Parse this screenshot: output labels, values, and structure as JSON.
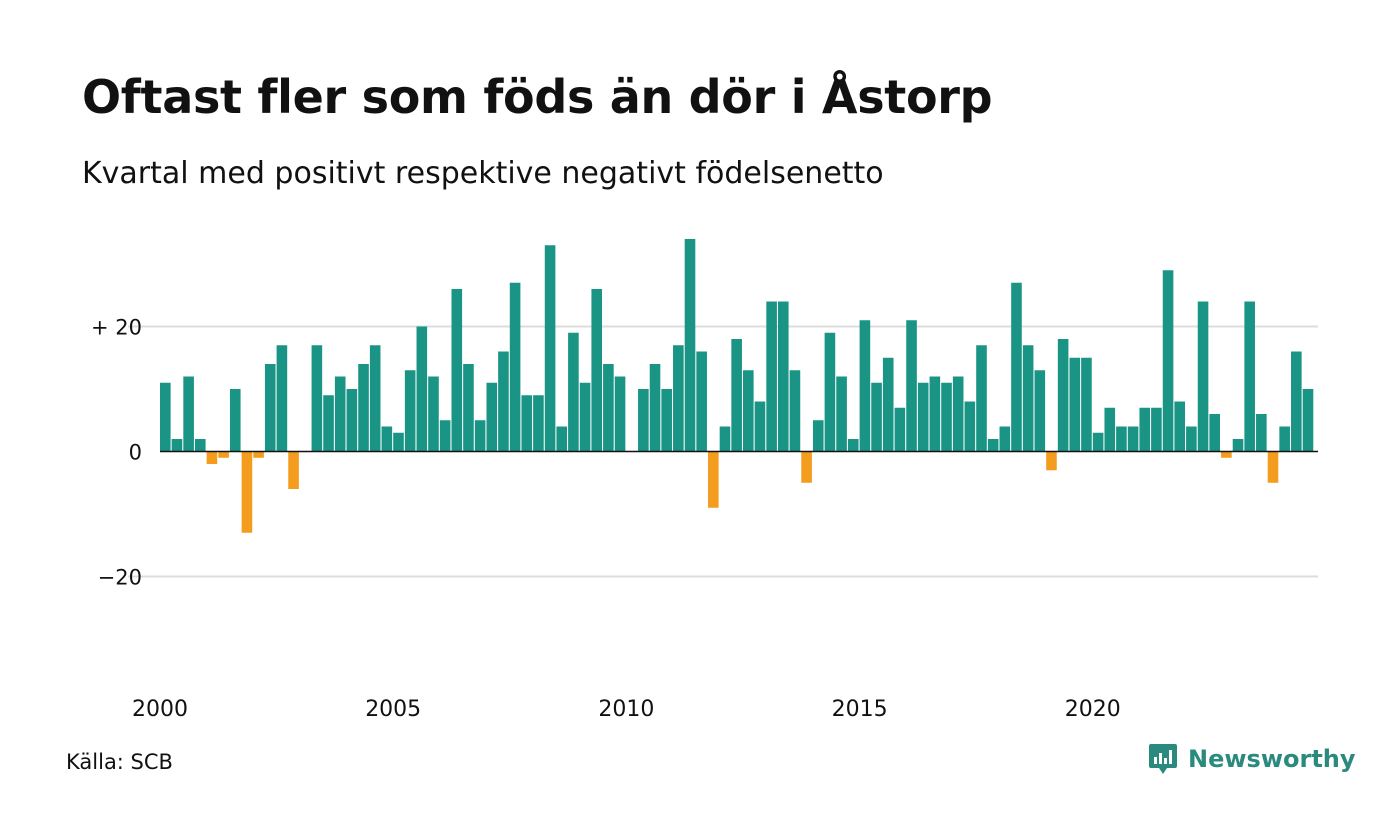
{
  "title": "Oftast fler som föds än dör i Åstorp",
  "subtitle": "Kvartal med positivt respektive negativt födelsenetto",
  "source": "Källa: SCB",
  "brand": {
    "name": "Newsworthy",
    "icon": "newsworthy-logo-icon",
    "color": "#2a8a7e"
  },
  "colors": {
    "positive": "#1a9485",
    "negative": "#f39c1e",
    "grid": "#dddddd",
    "zero_line": "#111111"
  },
  "chart_data": {
    "type": "bar",
    "title": "Oftast fler som föds än dör i Åstorp",
    "subtitle": "Kvartal med positivt respektive negativt födelsenetto",
    "xlabel": "",
    "ylabel": "",
    "ylim": [
      -40,
      40
    ],
    "yticks": [
      {
        "value": 20,
        "label": "+ 20"
      },
      {
        "value": 0,
        "label": "0"
      },
      {
        "value": -20,
        "label": "−20"
      }
    ],
    "xticks": [
      {
        "value": 2000,
        "label": "2000"
      },
      {
        "value": 2005,
        "label": "2005"
      },
      {
        "value": 2010,
        "label": "2010"
      },
      {
        "value": 2015,
        "label": "2015"
      },
      {
        "value": 2020,
        "label": "2020"
      }
    ],
    "start_year": 2000,
    "periods_per_year": 4,
    "grid": true,
    "values": [
      11,
      2,
      12,
      2,
      -2,
      -1,
      10,
      -13,
      -1,
      14,
      17,
      -6,
      0,
      17,
      9,
      12,
      10,
      14,
      17,
      4,
      3,
      13,
      20,
      12,
      5,
      26,
      14,
      5,
      11,
      16,
      27,
      9,
      9,
      33,
      4,
      19,
      11,
      26,
      14,
      12,
      0,
      10,
      14,
      10,
      17,
      34,
      16,
      -9,
      4,
      18,
      13,
      8,
      24,
      24,
      13,
      -5,
      5,
      19,
      12,
      2,
      21,
      11,
      15,
      7,
      21,
      11,
      12,
      11,
      12,
      8,
      17,
      2,
      4,
      27,
      17,
      13,
      -3,
      18,
      15,
      15,
      3,
      7,
      4,
      4,
      7,
      7,
      29,
      8,
      4,
      24,
      6,
      -1,
      2,
      24,
      6,
      -5,
      4,
      16,
      10
    ]
  }
}
